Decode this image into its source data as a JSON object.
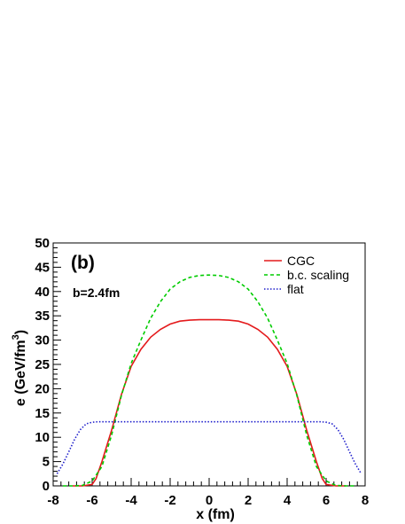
{
  "chart_data": {
    "type": "line",
    "panel_label": "(b)",
    "annotation": "b=2.4fm",
    "xlabel": "x (fm)",
    "ylabel": "e (GeV/fm",
    "ylabel_superscript": "3",
    "ylabel_close": ")",
    "xlim": [
      -8,
      8
    ],
    "ylim": [
      0,
      50
    ],
    "xticks": [
      -8,
      -6,
      -4,
      -2,
      0,
      2,
      4,
      6,
      8
    ],
    "yticks": [
      0,
      5,
      10,
      15,
      20,
      25,
      30,
      35,
      40,
      45,
      50
    ],
    "grid": false,
    "legend_position": "top-right",
    "series": [
      {
        "name": "CGC",
        "color": "#e41a1c",
        "dash": "solid",
        "x": [
          -7.0,
          -6.5,
          -6.0,
          -5.8,
          -5.5,
          -5.0,
          -4.5,
          -4.0,
          -3.5,
          -3.0,
          -2.5,
          -2.0,
          -1.5,
          -1.0,
          -0.5,
          0.0,
          0.5,
          1.0,
          1.5,
          2.0,
          2.5,
          3.0,
          3.5,
          4.0,
          4.5,
          5.0,
          5.5,
          5.8,
          6.0,
          6.5,
          7.0
        ],
        "y": [
          0.0,
          0.0,
          0.3,
          1.5,
          5.0,
          11.5,
          18.8,
          24.6,
          28.1,
          30.6,
          32.2,
          33.3,
          33.9,
          34.1,
          34.2,
          34.2,
          34.2,
          34.1,
          33.9,
          33.3,
          32.2,
          30.6,
          28.1,
          24.6,
          18.8,
          11.5,
          5.0,
          1.5,
          0.3,
          0.0,
          0.0
        ]
      },
      {
        "name": "b.c. scaling",
        "color": "#00cc00",
        "dash": "dashed",
        "x": [
          -7.5,
          -7.0,
          -6.5,
          -6.0,
          -5.5,
          -5.0,
          -4.5,
          -4.0,
          -3.5,
          -3.0,
          -2.5,
          -2.0,
          -1.5,
          -1.0,
          -0.5,
          0.0,
          0.5,
          1.0,
          1.5,
          2.0,
          2.5,
          3.0,
          3.5,
          4.0,
          4.5,
          5.0,
          5.5,
          6.0,
          6.5,
          7.0,
          7.5
        ],
        "y": [
          0.0,
          0.0,
          0.1,
          1.0,
          4.0,
          10.5,
          18.6,
          25.2,
          30.0,
          34.5,
          37.9,
          40.5,
          42.0,
          42.9,
          43.3,
          43.4,
          43.3,
          42.9,
          42.0,
          40.5,
          37.9,
          34.5,
          30.0,
          25.2,
          18.6,
          10.5,
          4.0,
          1.0,
          0.1,
          0.0,
          0.0
        ]
      },
      {
        "name": "flat",
        "color": "#2020cc",
        "dash": "dotted",
        "x": [
          -7.8,
          -7.5,
          -7.2,
          -6.9,
          -6.6,
          -6.3,
          -6.0,
          -5.7,
          -4.0,
          -2.0,
          0.0,
          2.0,
          4.0,
          5.7,
          6.0,
          6.3,
          6.6,
          6.9,
          7.2,
          7.5,
          7.8
        ],
        "y": [
          2.5,
          4.5,
          7.0,
          9.6,
          11.6,
          12.8,
          13.1,
          13.2,
          13.2,
          13.2,
          13.2,
          13.2,
          13.2,
          13.2,
          13.1,
          12.8,
          11.6,
          9.6,
          7.0,
          4.5,
          2.5
        ]
      }
    ]
  }
}
